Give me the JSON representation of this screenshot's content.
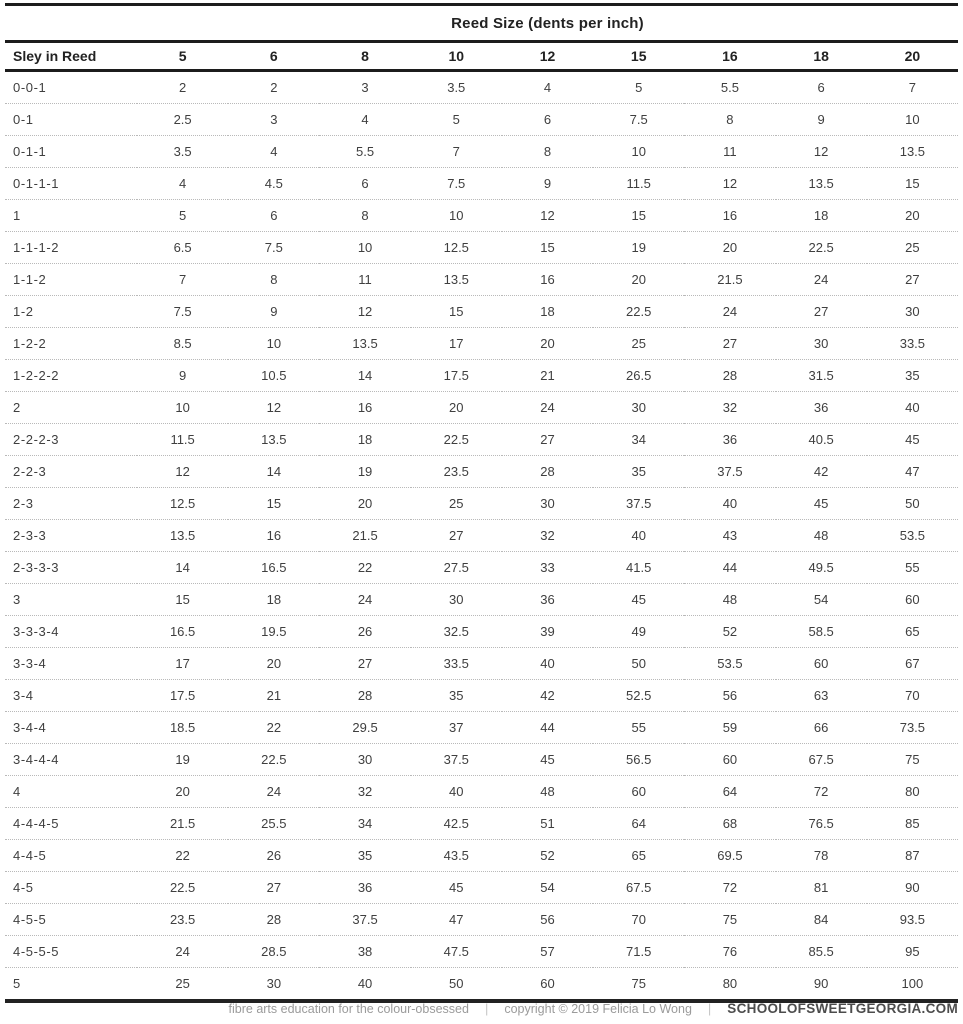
{
  "table": {
    "title": "Reed Size (dents per inch)",
    "row_header_label": "Sley in Reed",
    "columns": [
      "5",
      "6",
      "8",
      "10",
      "12",
      "15",
      "16",
      "18",
      "20"
    ],
    "rows": [
      {
        "sley": "0-0-1",
        "values": [
          "2",
          "2",
          "3",
          "3.5",
          "4",
          "5",
          "5.5",
          "6",
          "7"
        ]
      },
      {
        "sley": "0-1",
        "values": [
          "2.5",
          "3",
          "4",
          "5",
          "6",
          "7.5",
          "8",
          "9",
          "10"
        ]
      },
      {
        "sley": "0-1-1",
        "values": [
          "3.5",
          "4",
          "5.5",
          "7",
          "8",
          "10",
          "11",
          "12",
          "13.5"
        ]
      },
      {
        "sley": "0-1-1-1",
        "values": [
          "4",
          "4.5",
          "6",
          "7.5",
          "9",
          "11.5",
          "12",
          "13.5",
          "15"
        ]
      },
      {
        "sley": "1",
        "values": [
          "5",
          "6",
          "8",
          "10",
          "12",
          "15",
          "16",
          "18",
          "20"
        ]
      },
      {
        "sley": "1-1-1-2",
        "values": [
          "6.5",
          "7.5",
          "10",
          "12.5",
          "15",
          "19",
          "20",
          "22.5",
          "25"
        ]
      },
      {
        "sley": "1-1-2",
        "values": [
          "7",
          "8",
          "11",
          "13.5",
          "16",
          "20",
          "21.5",
          "24",
          "27"
        ]
      },
      {
        "sley": "1-2",
        "values": [
          "7.5",
          "9",
          "12",
          "15",
          "18",
          "22.5",
          "24",
          "27",
          "30"
        ]
      },
      {
        "sley": "1-2-2",
        "values": [
          "8.5",
          "10",
          "13.5",
          "17",
          "20",
          "25",
          "27",
          "30",
          "33.5"
        ]
      },
      {
        "sley": "1-2-2-2",
        "values": [
          "9",
          "10.5",
          "14",
          "17.5",
          "21",
          "26.5",
          "28",
          "31.5",
          "35"
        ]
      },
      {
        "sley": "2",
        "values": [
          "10",
          "12",
          "16",
          "20",
          "24",
          "30",
          "32",
          "36",
          "40"
        ]
      },
      {
        "sley": "2-2-2-3",
        "values": [
          "11.5",
          "13.5",
          "18",
          "22.5",
          "27",
          "34",
          "36",
          "40.5",
          "45"
        ]
      },
      {
        "sley": "2-2-3",
        "values": [
          "12",
          "14",
          "19",
          "23.5",
          "28",
          "35",
          "37.5",
          "42",
          "47"
        ]
      },
      {
        "sley": "2-3",
        "values": [
          "12.5",
          "15",
          "20",
          "25",
          "30",
          "37.5",
          "40",
          "45",
          "50"
        ]
      },
      {
        "sley": "2-3-3",
        "values": [
          "13.5",
          "16",
          "21.5",
          "27",
          "32",
          "40",
          "43",
          "48",
          "53.5"
        ]
      },
      {
        "sley": "2-3-3-3",
        "values": [
          "14",
          "16.5",
          "22",
          "27.5",
          "33",
          "41.5",
          "44",
          "49.5",
          "55"
        ]
      },
      {
        "sley": "3",
        "values": [
          "15",
          "18",
          "24",
          "30",
          "36",
          "45",
          "48",
          "54",
          "60"
        ]
      },
      {
        "sley": "3-3-3-4",
        "values": [
          "16.5",
          "19.5",
          "26",
          "32.5",
          "39",
          "49",
          "52",
          "58.5",
          "65"
        ]
      },
      {
        "sley": "3-3-4",
        "values": [
          "17",
          "20",
          "27",
          "33.5",
          "40",
          "50",
          "53.5",
          "60",
          "67"
        ]
      },
      {
        "sley": "3-4",
        "values": [
          "17.5",
          "21",
          "28",
          "35",
          "42",
          "52.5",
          "56",
          "63",
          "70"
        ]
      },
      {
        "sley": "3-4-4",
        "values": [
          "18.5",
          "22",
          "29.5",
          "37",
          "44",
          "55",
          "59",
          "66",
          "73.5"
        ]
      },
      {
        "sley": "3-4-4-4",
        "values": [
          "19",
          "22.5",
          "30",
          "37.5",
          "45",
          "56.5",
          "60",
          "67.5",
          "75"
        ]
      },
      {
        "sley": "4",
        "values": [
          "20",
          "24",
          "32",
          "40",
          "48",
          "60",
          "64",
          "72",
          "80"
        ]
      },
      {
        "sley": "4-4-4-5",
        "values": [
          "21.5",
          "25.5",
          "34",
          "42.5",
          "51",
          "64",
          "68",
          "76.5",
          "85"
        ]
      },
      {
        "sley": "4-4-5",
        "values": [
          "22",
          "26",
          "35",
          "43.5",
          "52",
          "65",
          "69.5",
          "78",
          "87"
        ]
      },
      {
        "sley": "4-5",
        "values": [
          "22.5",
          "27",
          "36",
          "45",
          "54",
          "67.5",
          "72",
          "81",
          "90"
        ]
      },
      {
        "sley": "4-5-5",
        "values": [
          "23.5",
          "28",
          "37.5",
          "47",
          "56",
          "70",
          "75",
          "84",
          "93.5"
        ]
      },
      {
        "sley": "4-5-5-5",
        "values": [
          "24",
          "28.5",
          "38",
          "47.5",
          "57",
          "71.5",
          "76",
          "85.5",
          "95"
        ]
      },
      {
        "sley": "5",
        "values": [
          "25",
          "30",
          "40",
          "50",
          "60",
          "75",
          "80",
          "90",
          "100"
        ]
      }
    ]
  },
  "footer": {
    "tagline": "fibre arts education for the colour-obsessed",
    "separator": "|",
    "copyright": "copyright © 2019 Felicia Lo Wong",
    "brand": "SCHOOLOFSWEETGEORGIA.COM"
  },
  "colors": {
    "rule_dark": "#1c1c1c",
    "row_separator": "#b9b9b9",
    "text": "#3f3f3f",
    "footer_gray": "#9b9b9b",
    "brand_dark": "#4c4c4c"
  }
}
